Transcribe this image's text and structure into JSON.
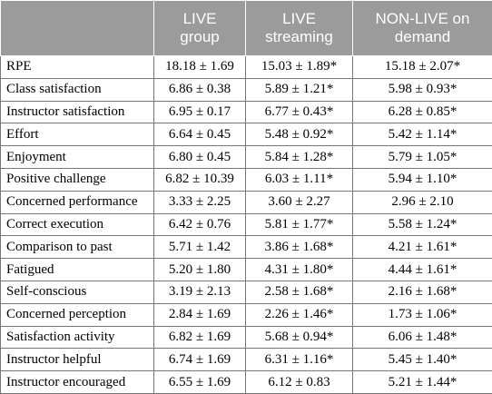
{
  "header": {
    "col0": "",
    "col1": [
      "LIVE",
      "group"
    ],
    "col2": [
      "LIVE",
      "streaming"
    ],
    "col3": [
      "NON-LIVE on",
      "demand"
    ]
  },
  "rows": [
    {
      "label": "RPE",
      "live_group": "18.18 ± 1.69",
      "live_streaming": "15.03 ± 1.89*",
      "non_live": "15.18 ± 2.07*"
    },
    {
      "label": "Class satisfaction",
      "live_group": "6.86 ± 0.38",
      "live_streaming": "5.89 ± 1.21*",
      "non_live": "5.98 ± 0.93*"
    },
    {
      "label": "Instructor satisfaction",
      "live_group": "6.95 ± 0.17",
      "live_streaming": "6.77 ± 0.43*",
      "non_live": "6.28 ± 0.85*"
    },
    {
      "label": "Effort",
      "live_group": "6.64 ± 0.45",
      "live_streaming": "5.48 ± 0.92*",
      "non_live": "5.42 ± 1.14*"
    },
    {
      "label": "Enjoyment",
      "live_group": "6.80 ± 0.45",
      "live_streaming": "5.84 ± 1.28*",
      "non_live": "5.79 ± 1.05*"
    },
    {
      "label": "Positive challenge",
      "live_group": "6.82 ± 10.39",
      "live_streaming": "6.03 ± 1.11*",
      "non_live": "5.94 ± 1.10*"
    },
    {
      "label": "Concerned performance",
      "live_group": "3.33 ± 2.25",
      "live_streaming": "3.60 ± 2.27",
      "non_live": "2.96 ± 2.10"
    },
    {
      "label": "Correct execution",
      "live_group": "6.42 ± 0.76",
      "live_streaming": "5.81 ± 1.77*",
      "non_live": "5.58 ± 1.24*"
    },
    {
      "label": "Comparison to past",
      "live_group": "5.71 ± 1.42",
      "live_streaming": "3.86 ± 1.68*",
      "non_live": "4.21 ± 1.61*"
    },
    {
      "label": "Fatigued",
      "live_group": "5.20 ± 1.80",
      "live_streaming": "4.31 ± 1.80*",
      "non_live": "4.44 ± 1.61*"
    },
    {
      "label": "Self-conscious",
      "live_group": "3.19 ± 2.13",
      "live_streaming": "2.58 ± 1.68*",
      "non_live": "2.16 ± 1.68*"
    },
    {
      "label": "Concerned perception",
      "live_group": "2.84 ± 1.69",
      "live_streaming": "2.26 ± 1.46*",
      "non_live": "1.73 ± 1.06*"
    },
    {
      "label": "Satisfaction activity",
      "live_group": "6.82 ± 1.69",
      "live_streaming": "5.68 ± 0.94*",
      "non_live": "6.06 ± 1.48*"
    },
    {
      "label": "Instructor helpful",
      "live_group": "6.74 ± 1.69",
      "live_streaming": "6.31 ± 1.16*",
      "non_live": "5.45 ± 1.40*"
    },
    {
      "label": "Instructor encouraged",
      "live_group": "6.55 ± 1.69",
      "live_streaming": "6.12 ± 0.83",
      "non_live": "5.21 ± 1.44*"
    }
  ]
}
